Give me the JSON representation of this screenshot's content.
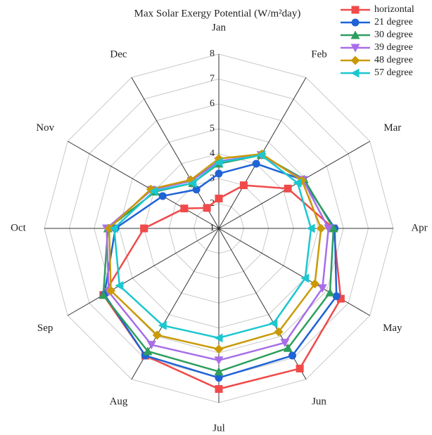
{
  "chart_data": {
    "type": "radar",
    "title": "Max Solar Exergy Potential (W/m²day)",
    "categories": [
      "Jan",
      "Feb",
      "Mar",
      "Apr",
      "May",
      "Jun",
      "Jul",
      "Aug",
      "Sep",
      "Oct",
      "Nov",
      "Dec"
    ],
    "ylim": [
      1,
      8
    ],
    "yticks": [
      1,
      2,
      3,
      4,
      5,
      6,
      7,
      8
    ],
    "grid": true,
    "legend": "upper right",
    "series": [
      {
        "name": "horizontal",
        "color": "#f04a4a",
        "marker": "square",
        "values": [
          2.2,
          3.0,
          4.2,
          5.6,
          6.65,
          7.5,
          7.45,
          6.9,
          6.35,
          4.0,
          2.6,
          1.95
        ]
      },
      {
        "name": "21 degree",
        "color": "#1f63d6",
        "marker": "circle",
        "values": [
          3.2,
          4.0,
          4.9,
          5.65,
          6.45,
          6.9,
          7.0,
          6.9,
          6.3,
          5.15,
          3.6,
          2.8
        ]
      },
      {
        "name": "30 degree",
        "color": "#2e9e5e",
        "marker": "triangle-up",
        "values": [
          3.6,
          4.4,
          4.95,
          5.6,
          6.15,
          6.55,
          6.75,
          6.7,
          6.35,
          5.45,
          3.95,
          3.1
        ]
      },
      {
        "name": "39 degree",
        "color": "#a86ee8",
        "marker": "triangle-down",
        "values": [
          3.7,
          4.4,
          4.9,
          5.4,
          5.8,
          6.3,
          6.3,
          6.4,
          6.1,
          5.5,
          4.1,
          3.2
        ]
      },
      {
        "name": "48 degree",
        "color": "#c99a06",
        "marker": "diamond",
        "values": [
          3.8,
          4.45,
          4.85,
          5.1,
          5.45,
          5.8,
          5.85,
          5.95,
          6.0,
          5.4,
          4.15,
          3.25
        ]
      },
      {
        "name": "57 degree",
        "color": "#1cc7d0",
        "marker": "triangle-left",
        "values": [
          3.65,
          4.4,
          4.65,
          4.7,
          5.0,
          5.4,
          5.4,
          5.5,
          5.6,
          5.2,
          4.0,
          3.1
        ]
      }
    ]
  }
}
